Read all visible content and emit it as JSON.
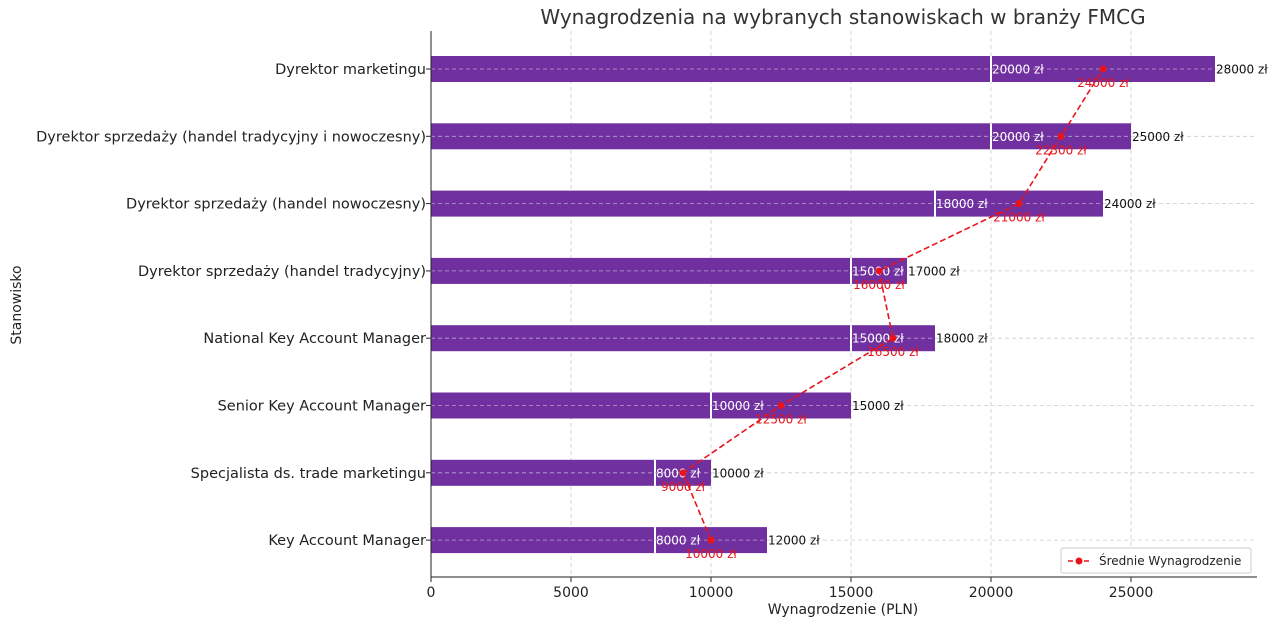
{
  "chart_data": {
    "type": "bar",
    "orientation": "horizontal",
    "title": "Wynagrodzenia na wybranych stanowiskach w branży FMCG",
    "xlabel": "Wynagrodzenie (PLN)",
    "ylabel": "Stanowisko",
    "xlim": [
      0,
      29500
    ],
    "xticks": [
      0,
      5000,
      10000,
      15000,
      20000,
      25000
    ],
    "grid": true,
    "categories": [
      "Key Account Manager",
      "Specjalista ds. trade marketingu",
      "Senior Key Account Manager",
      "National Key Account Manager",
      "Dyrektor sprzedaży (handel tradycyjny)",
      "Dyrektor sprzedaży (handel nowoczesny)",
      "Dyrektor sprzedaży (handel tradycyjny i nowoczesny)",
      "Dyrektor marketingu"
    ],
    "min_values": [
      8000,
      8000,
      10000,
      15000,
      15000,
      18000,
      20000,
      20000
    ],
    "max_values": [
      12000,
      10000,
      15000,
      18000,
      17000,
      24000,
      25000,
      28000
    ],
    "avg_values": [
      10000,
      9000,
      12500,
      16500,
      16000,
      21000,
      22500,
      24000
    ],
    "min_labels": [
      "8000 zł",
      "8000 zł",
      "10000 zł",
      "15000 zł",
      "15000 zł",
      "18000 zł",
      "20000 zł",
      "20000 zł"
    ],
    "max_labels": [
      "12000 zł",
      "10000 zł",
      "15000 zł",
      "18000 zł",
      "17000 zł",
      "24000 zł",
      "25000 zł",
      "28000 zł"
    ],
    "avg_labels": [
      "10000 zł",
      "9000 zł",
      "12500 zł",
      "16500 zł",
      "16000 zł",
      "21000 zł",
      "22500 zł",
      "24000 zł"
    ],
    "series": [
      {
        "name": "Średnie Wynagrodzenie",
        "values": [
          10000,
          9000,
          12500,
          16500,
          16000,
          21000,
          22500,
          24000
        ]
      }
    ],
    "legend": {
      "position": "bottom-right",
      "entries": [
        "Średnie Wynagrodzenie"
      ]
    },
    "colors": {
      "bar": "#7030a0",
      "average_line": "#e8141c",
      "divider": "#ffffff"
    }
  }
}
